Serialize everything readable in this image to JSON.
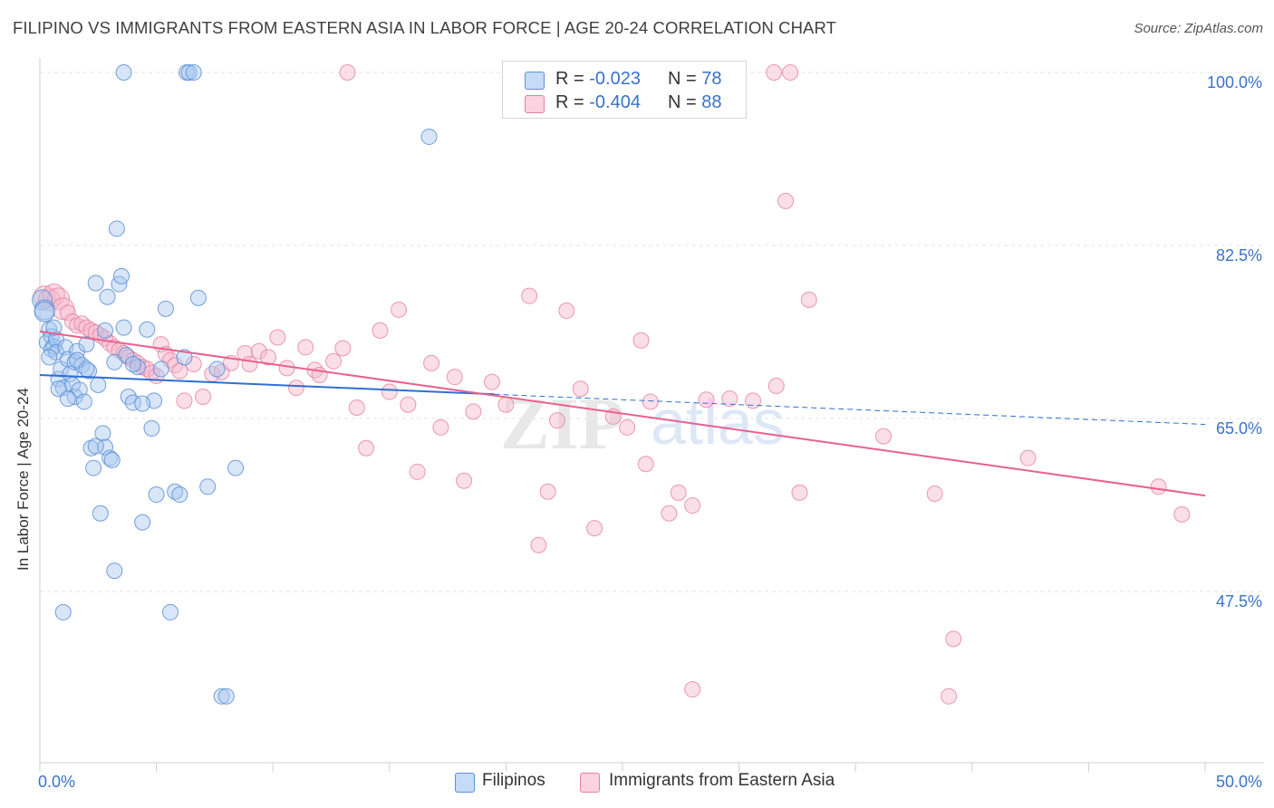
{
  "header": {
    "title": "FILIPINO VS IMMIGRANTS FROM EASTERN ASIA IN LABOR FORCE | AGE 20-24 CORRELATION CHART",
    "source": "Source: ZipAtlas.com"
  },
  "legend": {
    "rows": [
      {
        "r_label": "R =",
        "r_value": "-0.023",
        "n_label": "N =",
        "n_value": "78",
        "color": "#a9c8f0"
      },
      {
        "r_label": "R =",
        "r_value": "-0.404",
        "n_label": "N =",
        "n_value": "88",
        "color": "#f7b8cc"
      }
    ]
  },
  "watermark": {
    "zip": "ZIP",
    "atlas": "atlas"
  },
  "colors": {
    "blue_fill": "#a9c8f0",
    "blue_stroke": "#5b8fd6",
    "blue_line": "#2f6fd0",
    "pink_fill": "#f7b8cc",
    "pink_stroke": "#e57fa2",
    "pink_line": "#e8608f",
    "tick_label": "#3a72c8",
    "grid": "#e3e3e3"
  },
  "chart_data": {
    "type": "scatter",
    "title": "FILIPINO VS IMMIGRANTS FROM EASTERN ASIA IN LABOR FORCE | AGE 20-24 CORRELATION CHART",
    "xlabel": "",
    "ylabel": "In Labor Force | Age 20-24",
    "xlim": [
      0,
      50
    ],
    "ylim": [
      31.5,
      102
    ],
    "x_tick_labels": [
      "0.0%",
      "50.0%"
    ],
    "y_ticks": [
      47.5,
      65.0,
      82.5,
      100.0
    ],
    "y_tick_labels": [
      "47.5%",
      "65.0%",
      "82.5%",
      "100.0%"
    ],
    "grid": true,
    "legend_position": "top-center",
    "series": [
      {
        "name": "Filipinos",
        "r": -0.023,
        "n": 78,
        "trend": {
          "x0": 0,
          "y0": 69.4,
          "x_solid_end": 19.5,
          "x1": 50,
          "y1": 64.4
        },
        "points": [
          [
            0.1,
            77
          ],
          [
            0.2,
            76
          ],
          [
            0.3,
            72.7
          ],
          [
            0.4,
            74
          ],
          [
            0.5,
            73.3
          ],
          [
            0.5,
            72
          ],
          [
            0.6,
            72.3
          ],
          [
            0.7,
            73
          ],
          [
            0.7,
            71.7
          ],
          [
            0.8,
            69
          ],
          [
            0.9,
            70
          ],
          [
            1.0,
            68.1
          ],
          [
            1.1,
            72.2
          ],
          [
            1.2,
            71
          ],
          [
            1.3,
            69.5
          ],
          [
            1.4,
            68.4
          ],
          [
            1.5,
            67.2
          ],
          [
            1.5,
            70.7
          ],
          [
            1.6,
            71.8
          ],
          [
            1.7,
            67.9
          ],
          [
            1.8,
            70.4
          ],
          [
            1.9,
            66.7
          ],
          [
            2.0,
            72.5
          ],
          [
            2.1,
            69.8
          ],
          [
            2.2,
            62
          ],
          [
            2.3,
            60
          ],
          [
            2.4,
            78.7
          ],
          [
            2.5,
            68.4
          ],
          [
            2.6,
            55.4
          ],
          [
            2.7,
            63.5
          ],
          [
            2.8,
            62.1
          ],
          [
            2.9,
            77.3
          ],
          [
            3.0,
            61
          ],
          [
            3.1,
            60.8
          ],
          [
            3.2,
            49.6
          ],
          [
            3.3,
            84.2
          ],
          [
            3.4,
            78.6
          ],
          [
            3.5,
            79.4
          ],
          [
            3.6,
            74.2
          ],
          [
            3.7,
            71.4
          ],
          [
            3.8,
            67.2
          ],
          [
            4.0,
            66.6
          ],
          [
            4.2,
            70.2
          ],
          [
            4.4,
            54.5
          ],
          [
            4.6,
            74
          ],
          [
            4.8,
            64
          ],
          [
            4.9,
            66.8
          ],
          [
            5.0,
            57.3
          ],
          [
            5.2,
            70
          ],
          [
            5.4,
            76.1
          ],
          [
            5.6,
            45.4
          ],
          [
            5.8,
            57.6
          ],
          [
            6.0,
            57.3
          ],
          [
            6.2,
            71.2
          ],
          [
            6.3,
            100
          ],
          [
            6.4,
            100
          ],
          [
            6.6,
            100
          ],
          [
            6.8,
            77.2
          ],
          [
            7.2,
            58.1
          ],
          [
            7.6,
            70
          ],
          [
            7.8,
            36.9
          ],
          [
            8.0,
            36.9
          ],
          [
            8.4,
            60
          ],
          [
            3.6,
            100
          ],
          [
            16.7,
            93.5
          ],
          [
            0.2,
            75.8
          ],
          [
            0.4,
            71.2
          ],
          [
            1.0,
            45.4
          ],
          [
            0.8,
            68
          ],
          [
            1.2,
            67
          ],
          [
            1.6,
            70.9
          ],
          [
            2.0,
            70
          ],
          [
            2.4,
            62.2
          ],
          [
            2.8,
            73.9
          ],
          [
            3.2,
            70.7
          ],
          [
            4.0,
            70.5
          ],
          [
            4.4,
            66.5
          ],
          [
            0.6,
            74.2
          ]
        ]
      },
      {
        "name": "Immigrants from Eastern Asia",
        "r": -0.404,
        "n": 88,
        "trend": {
          "x0": 0,
          "y0": 73.8,
          "x1": 50,
          "y1": 57.2
        },
        "points": [
          [
            0.2,
            77.3
          ],
          [
            0.4,
            77
          ],
          [
            0.6,
            77.5
          ],
          [
            0.8,
            77.1
          ],
          [
            1.0,
            76.1
          ],
          [
            1.2,
            75.7
          ],
          [
            1.4,
            74.8
          ],
          [
            1.6,
            74.4
          ],
          [
            1.8,
            74.6
          ],
          [
            2.0,
            74.2
          ],
          [
            2.2,
            73.9
          ],
          [
            2.4,
            73.7
          ],
          [
            2.6,
            73.4
          ],
          [
            2.8,
            73.1
          ],
          [
            3.0,
            72.6
          ],
          [
            3.2,
            72.2
          ],
          [
            3.4,
            71.9
          ],
          [
            3.6,
            71.6
          ],
          [
            3.8,
            71.2
          ],
          [
            4.0,
            70.9
          ],
          [
            4.2,
            70.6
          ],
          [
            4.4,
            70.2
          ],
          [
            4.6,
            70
          ],
          [
            4.8,
            69.6
          ],
          [
            5.0,
            69.3
          ],
          [
            5.2,
            72.5
          ],
          [
            5.4,
            71.5
          ],
          [
            5.6,
            70.9
          ],
          [
            5.8,
            70.4
          ],
          [
            6.0,
            69.8
          ],
          [
            6.2,
            66.8
          ],
          [
            6.6,
            70.5
          ],
          [
            7.0,
            67.2
          ],
          [
            7.4,
            69.5
          ],
          [
            7.8,
            69.7
          ],
          [
            8.2,
            70.6
          ],
          [
            8.8,
            71.6
          ],
          [
            9.0,
            70.5
          ],
          [
            9.4,
            71.8
          ],
          [
            9.8,
            71.2
          ],
          [
            10.2,
            73.2
          ],
          [
            10.6,
            70.1
          ],
          [
            11.0,
            68.1
          ],
          [
            11.4,
            72.2
          ],
          [
            11.8,
            69.9
          ],
          [
            12.0,
            69.4
          ],
          [
            12.6,
            70.8
          ],
          [
            13.0,
            72.1
          ],
          [
            13.6,
            66.1
          ],
          [
            14.0,
            62
          ],
          [
            14.6,
            73.9
          ],
          [
            15.0,
            67.7
          ],
          [
            15.4,
            76
          ],
          [
            15.8,
            66.4
          ],
          [
            16.2,
            59.6
          ],
          [
            16.8,
            70.6
          ],
          [
            17.2,
            64.1
          ],
          [
            17.8,
            69.2
          ],
          [
            18.2,
            58.7
          ],
          [
            18.6,
            65.7
          ],
          [
            19.4,
            68.7
          ],
          [
            20.0,
            66.4
          ],
          [
            21.0,
            77.4
          ],
          [
            21.4,
            52.2
          ],
          [
            21.8,
            57.6
          ],
          [
            22.2,
            64.8
          ],
          [
            22.6,
            75.9
          ],
          [
            23.2,
            68
          ],
          [
            23.8,
            53.9
          ],
          [
            24.6,
            65.2
          ],
          [
            25.2,
            64.1
          ],
          [
            25.8,
            72.9
          ],
          [
            26.2,
            66.7
          ],
          [
            27.0,
            55.4
          ],
          [
            27.4,
            57.5
          ],
          [
            28.0,
            56.2
          ],
          [
            28.6,
            66.9
          ],
          [
            29.6,
            67
          ],
          [
            30.6,
            66.8
          ],
          [
            31.6,
            68.3
          ],
          [
            32.0,
            87
          ],
          [
            32.6,
            57.5
          ],
          [
            33.0,
            77
          ],
          [
            36.2,
            63.2
          ],
          [
            38.4,
            57.4
          ],
          [
            39.2,
            42.7
          ],
          [
            39.0,
            36.9
          ],
          [
            42.4,
            61
          ]
        ]
      }
    ],
    "extra_points_pink": [
      [
        28.0,
        37.6
      ],
      [
        26.0,
        60.4
      ],
      [
        31.5,
        100
      ],
      [
        32.2,
        100
      ],
      [
        48.0,
        58.1
      ],
      [
        49.0,
        55.3
      ],
      [
        13.2,
        100
      ]
    ]
  },
  "axes": {
    "ylabel": "In Labor Force | Age 20-24",
    "x_left_label": "0.0%",
    "x_right_label": "50.0%"
  },
  "bottom_legend": {
    "items": [
      {
        "label": "Filipinos",
        "color": "#a9c8f0"
      },
      {
        "label": "Immigrants from Eastern Asia",
        "color": "#f7b8cc"
      }
    ]
  }
}
